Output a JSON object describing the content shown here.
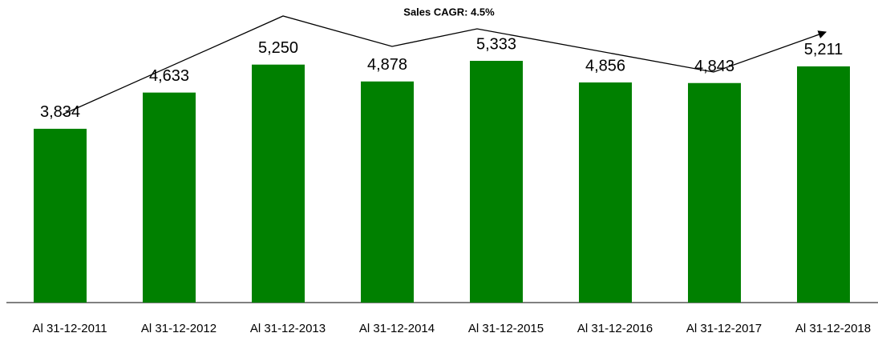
{
  "chart_data": {
    "type": "bar",
    "annotation": "Sales CAGR: 4.5%",
    "categories": [
      "Al 31-12-2011",
      "Al 31-12-2012",
      "Al 31-12-2013",
      "Al 31-12-2014",
      "Al 31-12-2015",
      "Al 31-12-2016",
      "Al 31-12-2017",
      "Al 31-12-2018"
    ],
    "values": [
      3834,
      4633,
      5250,
      4878,
      5333,
      4856,
      4843,
      5211
    ],
    "value_labels": [
      "3,834",
      "4,633",
      "5,250",
      "4,878",
      "5,333",
      "4,856",
      "4,843",
      "5,211"
    ],
    "color": "#008000"
  }
}
